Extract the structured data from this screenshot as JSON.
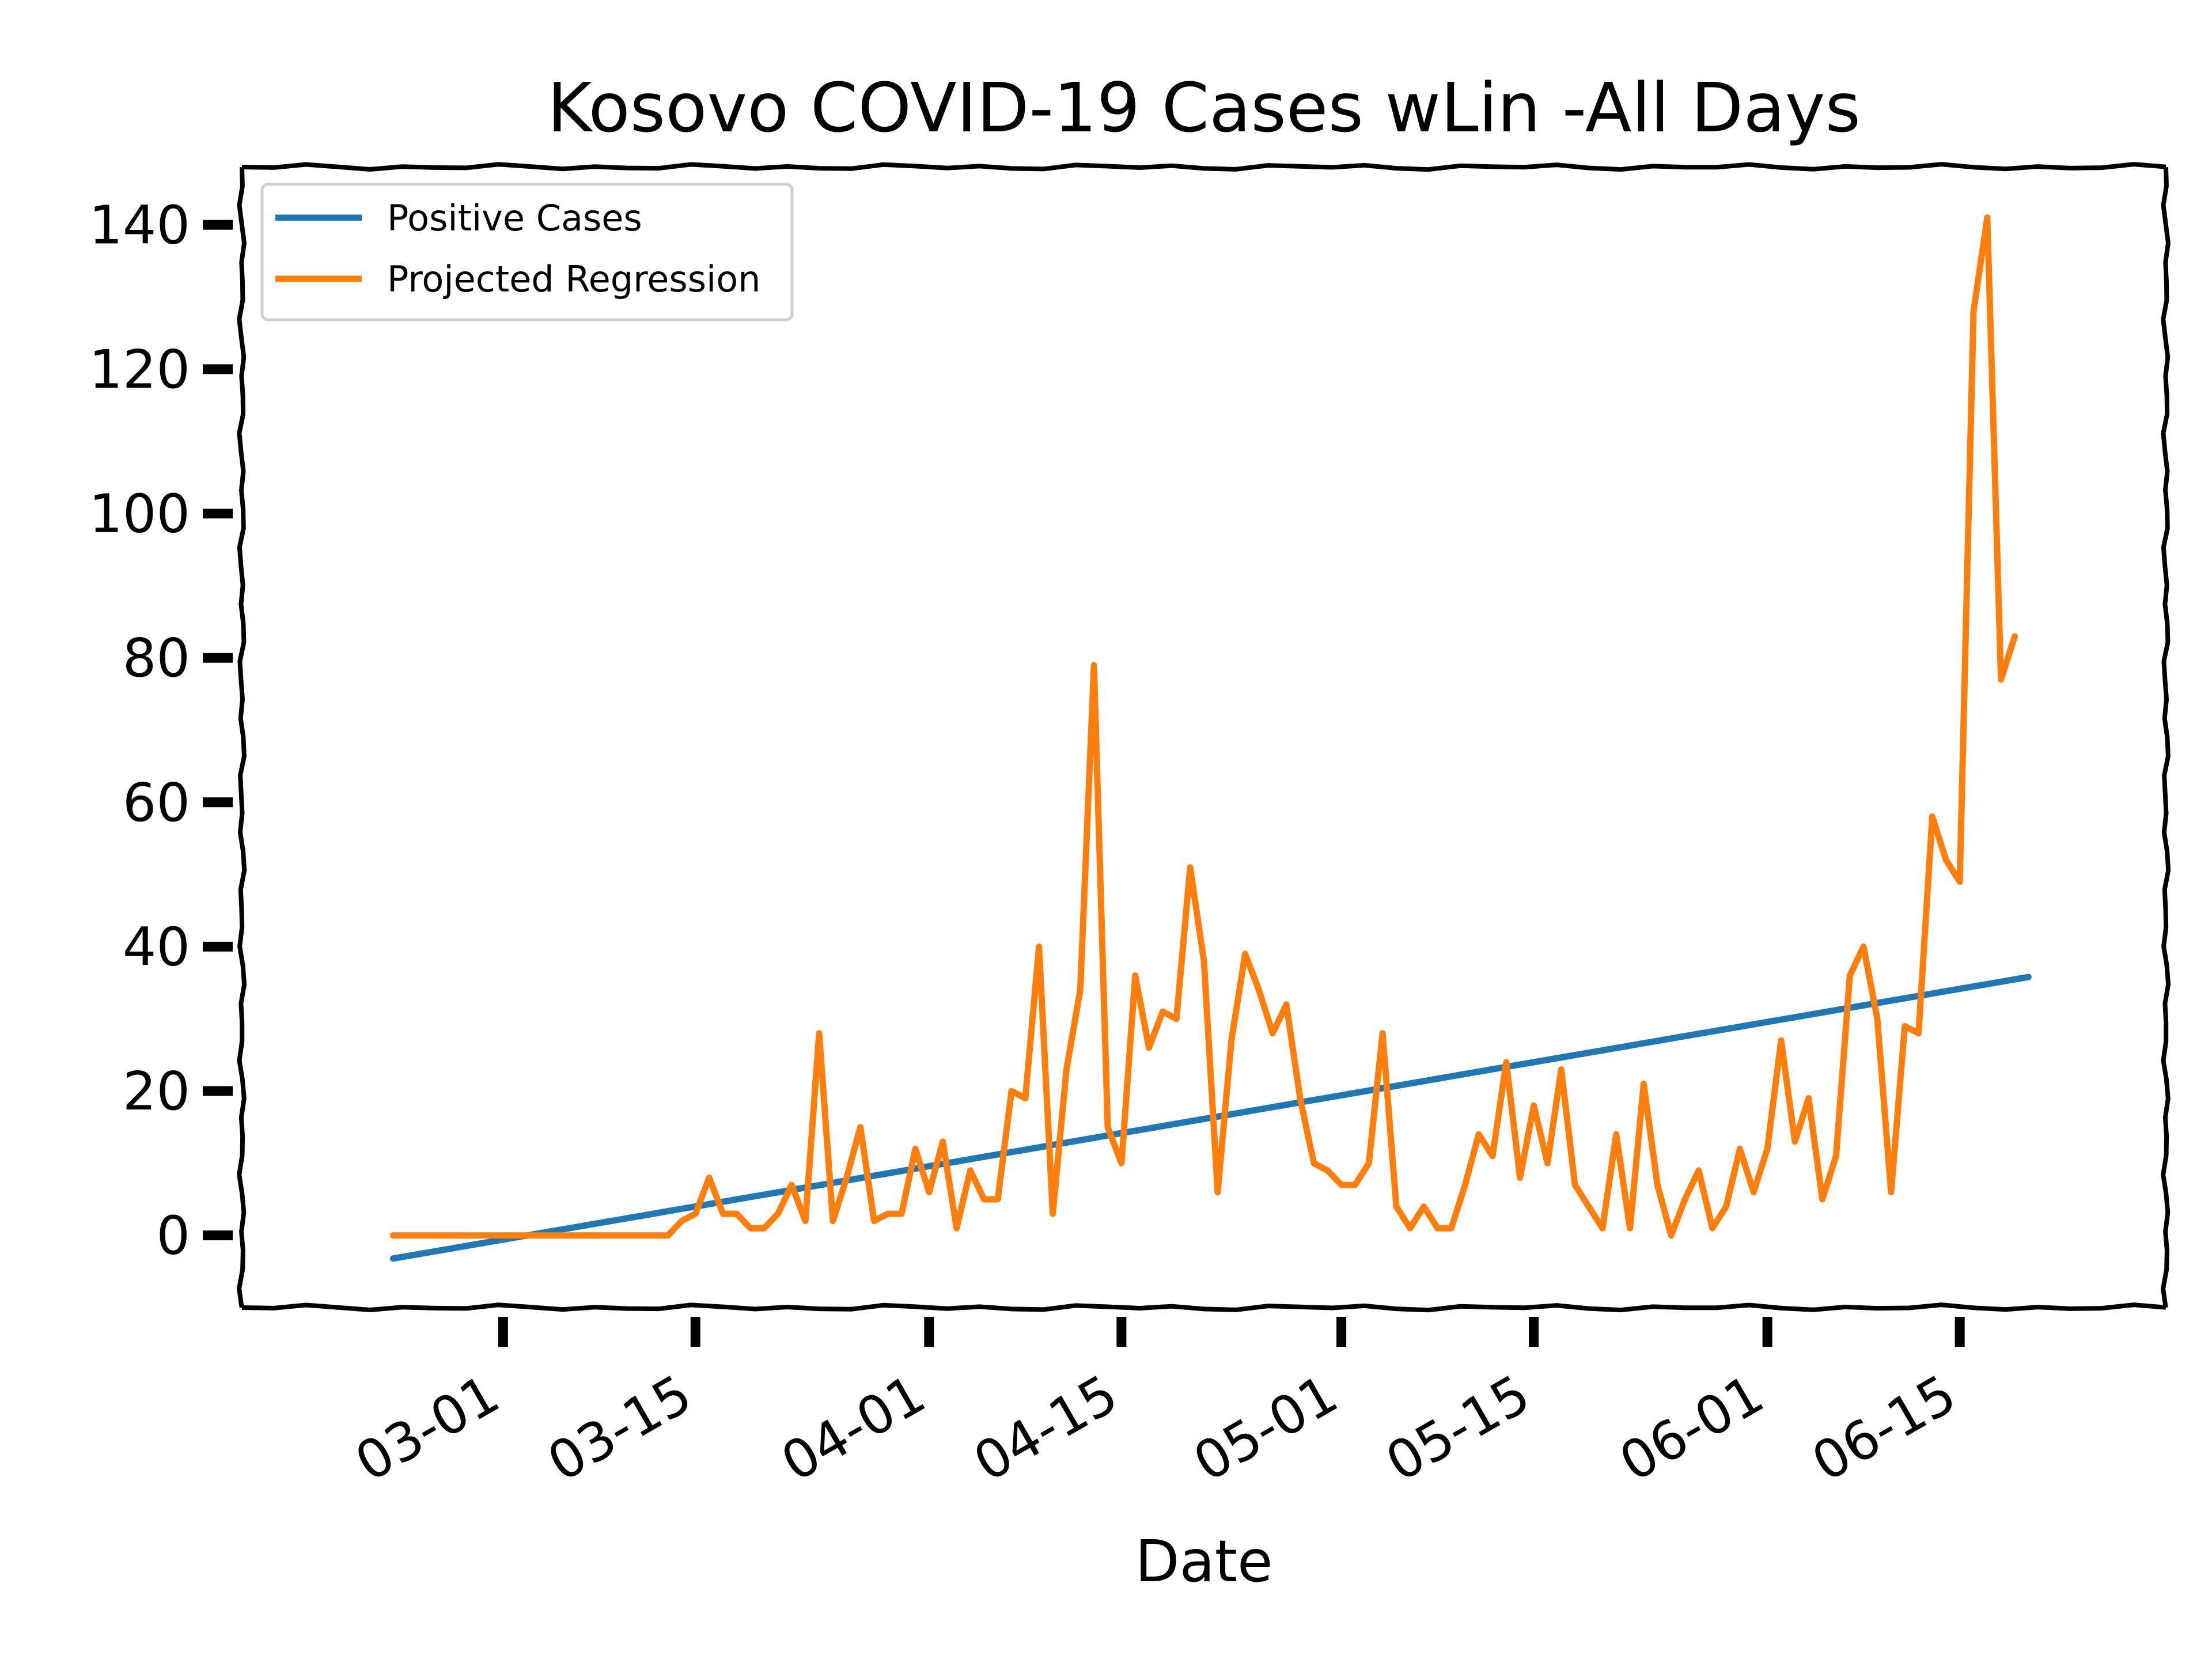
{
  "chart_data": {
    "type": "line",
    "title": "Kosovo COVID-19 Cases wLin -All Days",
    "xlabel": "Date",
    "ylabel": "",
    "x_start": "2020-02-22",
    "x_end": "2020-06-20",
    "xlim": [
      "2020-02-11",
      "2020-06-30"
    ],
    "ylim": [
      -10,
      148
    ],
    "yticks": [
      0,
      20,
      40,
      60,
      80,
      100,
      120,
      140
    ],
    "xticks": [
      "03-01",
      "03-15",
      "04-01",
      "04-15",
      "05-01",
      "05-15",
      "06-01",
      "06-15"
    ],
    "legend_position": "top-left",
    "grid": false,
    "series": [
      {
        "name": "Positive Cases",
        "color": "#1f77b4",
        "values_linear": {
          "start": -3.2,
          "end": 35.8
        }
      },
      {
        "name": "Projected Regression",
        "color": "#ff7f0e",
        "values": [
          0,
          0,
          0,
          0,
          0,
          0,
          0,
          0,
          0,
          0,
          0,
          0,
          0,
          0,
          0,
          0,
          0,
          0,
          0,
          0,
          0,
          2,
          3,
          8,
          3,
          3,
          1,
          1,
          3,
          7,
          2,
          28,
          2,
          8,
          15,
          2,
          3,
          3,
          12,
          6,
          13,
          1,
          9,
          5,
          5,
          20,
          19,
          40,
          3,
          23,
          34,
          79,
          15,
          10,
          36,
          26,
          31,
          30,
          51,
          38,
          6,
          27,
          39,
          34,
          28,
          32,
          19,
          10,
          9,
          7,
          7,
          10,
          28,
          4,
          1,
          4,
          1,
          1,
          7,
          14,
          11,
          24,
          8,
          18,
          10,
          23,
          7,
          4,
          1,
          14,
          1,
          21,
          7,
          0,
          5,
          9,
          1,
          4,
          12,
          6,
          12,
          27,
          13,
          19,
          5,
          11,
          36,
          40,
          30,
          6,
          29,
          28,
          58,
          52,
          49,
          128,
          141,
          77,
          83
        ]
      }
    ]
  }
}
